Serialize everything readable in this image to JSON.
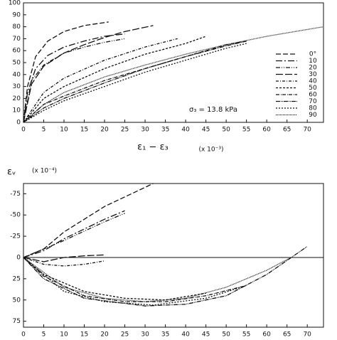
{
  "chart_data": [
    {
      "type": "line",
      "xlim": [
        0,
        74
      ],
      "ylim": [
        0,
        100
      ],
      "xticks": [
        0,
        5,
        10,
        15,
        20,
        25,
        30,
        35,
        40,
        45,
        50,
        55,
        60,
        65,
        70
      ],
      "yticks": [
        0,
        10,
        20,
        30,
        40,
        50,
        60,
        70,
        80,
        90,
        100
      ],
      "x_label": "ε₁ − ε₃",
      "x_label_unit": "(x 10⁻³)",
      "annotation": "σ₃ = 13.8 kPa",
      "legend": "right",
      "color": "#111",
      "series": [
        {
          "name": "0°",
          "x": [
            0,
            1,
            3,
            6,
            10,
            15,
            21
          ],
          "values": [
            0,
            30,
            55,
            68,
            76,
            81,
            84
          ]
        },
        {
          "name": "10",
          "x": [
            0,
            1,
            3,
            6,
            10,
            15,
            20,
            25
          ],
          "values": [
            0,
            25,
            45,
            56,
            63,
            68,
            72,
            74
          ]
        },
        {
          "name": "20",
          "x": [
            0,
            2,
            5,
            10,
            15,
            20,
            25
          ],
          "values": [
            0,
            35,
            48,
            58,
            63,
            67,
            70
          ]
        },
        {
          "name": "30",
          "x": [
            0,
            2,
            5,
            10,
            15,
            20,
            25,
            32
          ],
          "values": [
            0,
            32,
            47,
            58,
            65,
            71,
            76,
            81
          ]
        },
        {
          "name": "40",
          "x": [
            0,
            5,
            10,
            20,
            30,
            38
          ],
          "values": [
            0,
            25,
            37,
            52,
            63,
            70
          ]
        },
        {
          "name": "50",
          "x": [
            0,
            5,
            10,
            20,
            30,
            40,
            45
          ],
          "values": [
            0,
            20,
            30,
            45,
            57,
            66,
            72
          ]
        },
        {
          "name": "60",
          "x": [
            0,
            5,
            10,
            20,
            30,
            40,
            50,
            55
          ],
          "values": [
            0,
            15,
            22,
            35,
            45,
            55,
            65,
            68
          ]
        },
        {
          "name": "70",
          "x": [
            0,
            5,
            10,
            20,
            30,
            40,
            50,
            55
          ],
          "values": [
            0,
            12,
            20,
            33,
            45,
            55,
            64,
            68
          ]
        },
        {
          "name": "80",
          "x": [
            0,
            5,
            10,
            20,
            30,
            40,
            50,
            55
          ],
          "values": [
            0,
            10,
            18,
            30,
            42,
            52,
            62,
            66
          ]
        },
        {
          "name": "90",
          "x": [
            0,
            5,
            10,
            20,
            30,
            40,
            50,
            60,
            74
          ],
          "values": [
            0,
            15,
            25,
            38,
            48,
            57,
            65,
            72,
            80
          ]
        }
      ]
    },
    {
      "type": "line",
      "xlim": [
        0,
        74
      ],
      "ylim": [
        -87,
        82
      ],
      "y_inverted": true,
      "xticks": [
        0,
        5,
        10,
        15,
        20,
        25,
        30,
        35,
        40,
        45,
        50,
        55,
        60,
        65,
        70
      ],
      "yticks": [
        -75,
        -50,
        -25,
        0,
        25,
        50,
        75
      ],
      "y_label": "εᵥ",
      "y_label_unit": "(x 10⁻⁴)",
      "color": "#111",
      "series": [
        {
          "name": "0°",
          "x": [
            0,
            5,
            10,
            20,
            32
          ],
          "values": [
            0,
            -10,
            -30,
            -60,
            -87
          ]
        },
        {
          "name": "10",
          "x": [
            0,
            5,
            10,
            20,
            25
          ],
          "values": [
            0,
            -8,
            -22,
            -45,
            -55
          ]
        },
        {
          "name": "20",
          "x": [
            0,
            10,
            20,
            25
          ],
          "values": [
            0,
            -20,
            -42,
            -52
          ]
        },
        {
          "name": "30",
          "x": [
            0,
            5,
            10,
            15,
            20
          ],
          "values": [
            0,
            5,
            0,
            -2,
            -3
          ]
        },
        {
          "name": "40",
          "x": [
            0,
            5,
            10,
            15,
            20
          ],
          "values": [
            0,
            8,
            10,
            8,
            4
          ]
        },
        {
          "name": "50",
          "x": [
            0,
            5,
            15,
            25,
            35,
            45
          ],
          "values": [
            0,
            20,
            40,
            48,
            50,
            42
          ]
        },
        {
          "name": "60",
          "x": [
            0,
            5,
            15,
            25,
            35,
            45,
            55
          ],
          "values": [
            0,
            22,
            45,
            52,
            52,
            45,
            33
          ]
        },
        {
          "name": "70",
          "x": [
            0,
            5,
            15,
            30,
            40,
            50,
            60,
            70
          ],
          "values": [
            0,
            25,
            48,
            57,
            55,
            45,
            20,
            -13
          ]
        },
        {
          "name": "80",
          "x": [
            0,
            10,
            20,
            32,
            45,
            55
          ],
          "values": [
            0,
            40,
            52,
            56,
            48,
            33
          ]
        },
        {
          "name": "90",
          "x": [
            0,
            10,
            20,
            30,
            40,
            50,
            60,
            66
          ],
          "values": [
            0,
            35,
            48,
            52,
            48,
            35,
            15,
            0
          ]
        }
      ]
    }
  ]
}
